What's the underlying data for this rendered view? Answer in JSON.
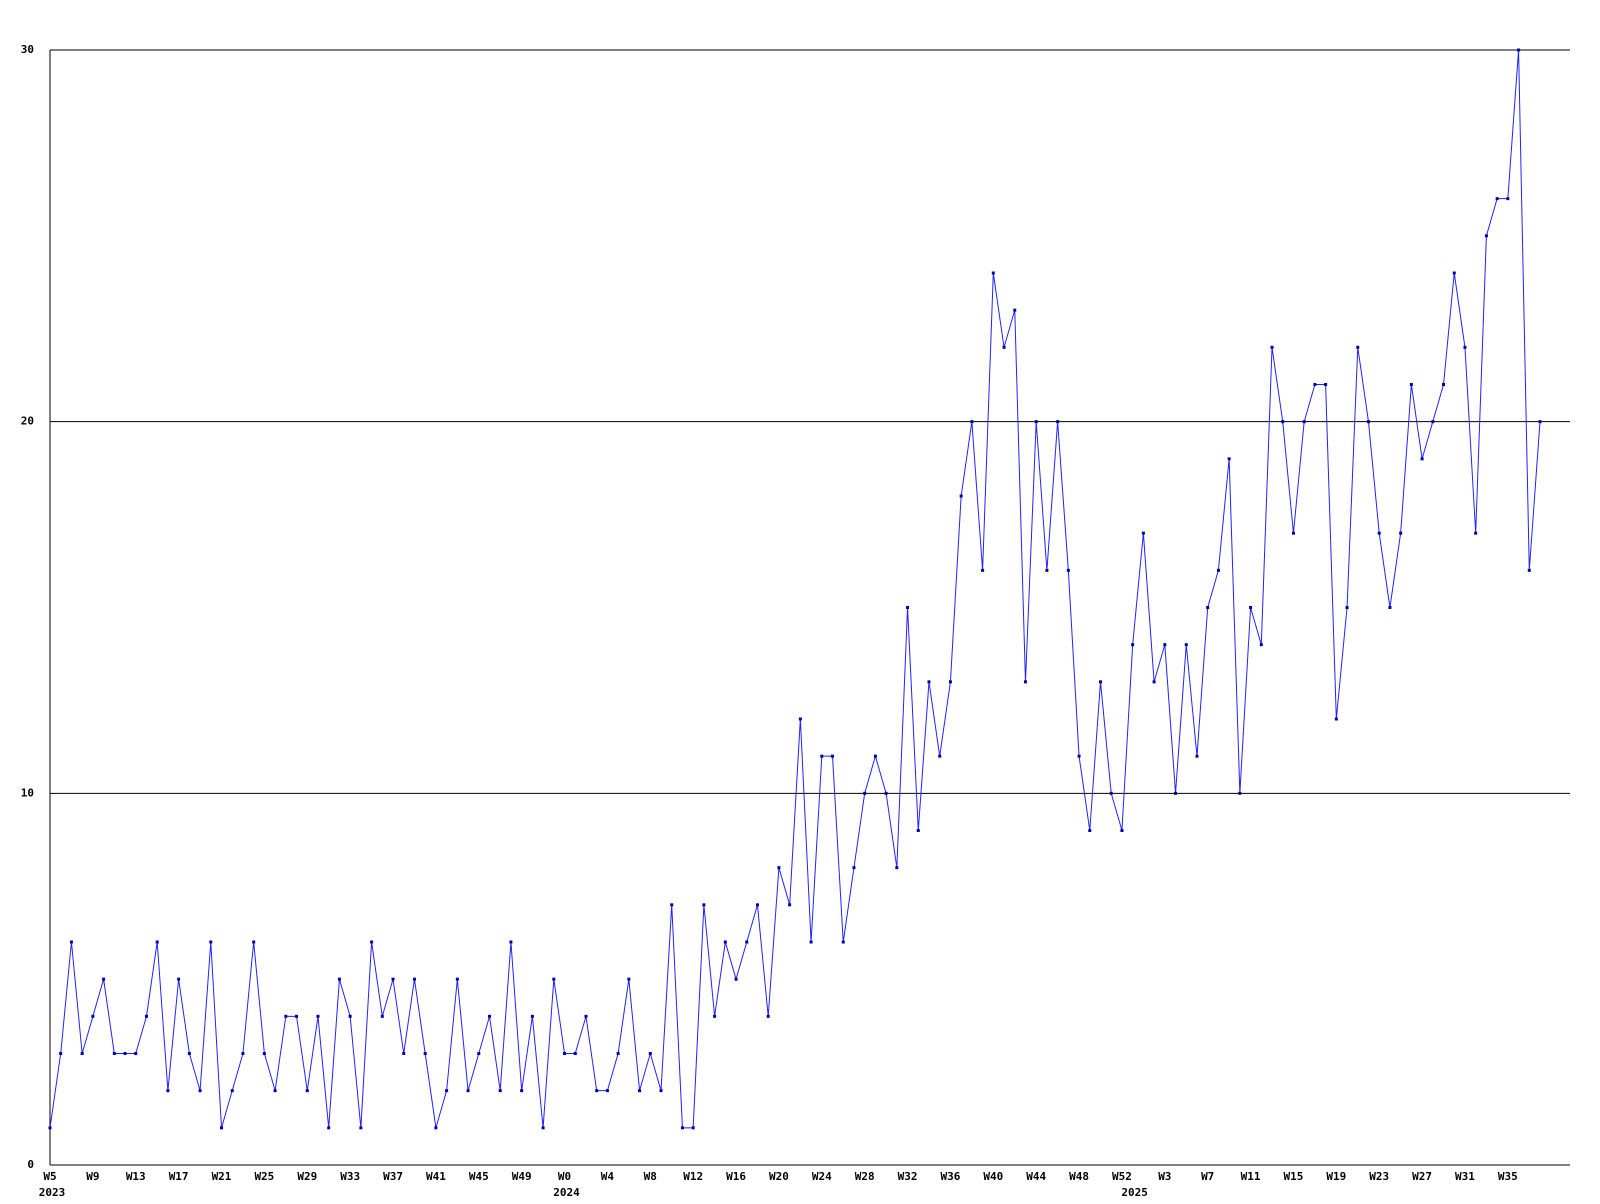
{
  "chart_data": {
    "type": "line",
    "categories": [
      "W5",
      null,
      null,
      null,
      "W9",
      null,
      null,
      null,
      "W13",
      null,
      null,
      null,
      "W17",
      null,
      null,
      null,
      "W21",
      null,
      null,
      null,
      "W25",
      null,
      null,
      null,
      "W29",
      null,
      null,
      null,
      "W33",
      null,
      null,
      null,
      "W37",
      null,
      null,
      null,
      "W41",
      null,
      null,
      null,
      "W45",
      null,
      null,
      null,
      "W49",
      null,
      null,
      null,
      "W0",
      null,
      null,
      null,
      "W4",
      null,
      null,
      null,
      "W8",
      null,
      null,
      null,
      "W12",
      null,
      null,
      null,
      "W16",
      null,
      null,
      null,
      "W20",
      null,
      null,
      null,
      "W24",
      null,
      null,
      null,
      "W28",
      null,
      null,
      null,
      "W32",
      null,
      null,
      null,
      "W36",
      null,
      null,
      null,
      "W40",
      null,
      null,
      null,
      "W44",
      null,
      null,
      null,
      "W48",
      null,
      null,
      null,
      "W52",
      null,
      null,
      null,
      "W3",
      null,
      null,
      null,
      "W7",
      null,
      null,
      null,
      "W11",
      null,
      null,
      null,
      "W15",
      null,
      null,
      null,
      "W19",
      null,
      null,
      null,
      "W23",
      null,
      null,
      null,
      "W27",
      null,
      null,
      null,
      "W31",
      null,
      null,
      null,
      "W35",
      null,
      null,
      null
    ],
    "year_labels": [
      "2023",
      null,
      null,
      null,
      null,
      null,
      null,
      null,
      null,
      null,
      null,
      null,
      null,
      null,
      null,
      null,
      null,
      null,
      null,
      null,
      null,
      null,
      null,
      null,
      null,
      null,
      null,
      null,
      null,
      null,
      null,
      null,
      null,
      null,
      null,
      null,
      null,
      null,
      null,
      null,
      null,
      null,
      null,
      null,
      null,
      null,
      null,
      null,
      "2024",
      null,
      null,
      null,
      null,
      null,
      null,
      null,
      null,
      null,
      null,
      null,
      null,
      null,
      null,
      null,
      null,
      null,
      null,
      null,
      null,
      null,
      null,
      null,
      null,
      null,
      null,
      null,
      null,
      null,
      null,
      null,
      null,
      null,
      null,
      null,
      null,
      null,
      null,
      null,
      null,
      null,
      null,
      null,
      null,
      null,
      null,
      null,
      null,
      null,
      null,
      null,
      null,
      "2025",
      null,
      null,
      null,
      null,
      null,
      null,
      null,
      null,
      null,
      null,
      null,
      null,
      null,
      null,
      null,
      null,
      null,
      null,
      null,
      null,
      null,
      null,
      null,
      null,
      null,
      null,
      null,
      null,
      null,
      null,
      null,
      null,
      null,
      null,
      null,
      null,
      null,
      null
    ],
    "series": [
      {
        "color": "#2222ff",
        "values": [
          1,
          3,
          6,
          3,
          4,
          5,
          3,
          3,
          3,
          4,
          6,
          2,
          5,
          3,
          2,
          6,
          1,
          2,
          3,
          6,
          3,
          2,
          4,
          4,
          2,
          4,
          1,
          5,
          4,
          1,
          6,
          4,
          5,
          3,
          5,
          3,
          1,
          2,
          5,
          2,
          3,
          4,
          2,
          6,
          2,
          4,
          1,
          5,
          3,
          3,
          4,
          2,
          2,
          3,
          5,
          2,
          3,
          2,
          7,
          1,
          1,
          7,
          4,
          6,
          5,
          6,
          7,
          4,
          8,
          7,
          12,
          6,
          11,
          11,
          6,
          8,
          10,
          11,
          10,
          8,
          15,
          9,
          13,
          11,
          13,
          18,
          20,
          16,
          24,
          22,
          23,
          13,
          20,
          16,
          20,
          16,
          11,
          9,
          13,
          10,
          9,
          14,
          17,
          13,
          14,
          10,
          14,
          11,
          15,
          16,
          19,
          10,
          15,
          14,
          22,
          20,
          17,
          20,
          21,
          21,
          12,
          15,
          22,
          20,
          17,
          15,
          17,
          21,
          19,
          20,
          21,
          24,
          22,
          17,
          25,
          26,
          26,
          30,
          16,
          20
        ]
      }
    ],
    "ylim": [
      0,
      30
    ],
    "yticks": [
      0,
      10,
      20,
      30
    ],
    "grid": true
  }
}
